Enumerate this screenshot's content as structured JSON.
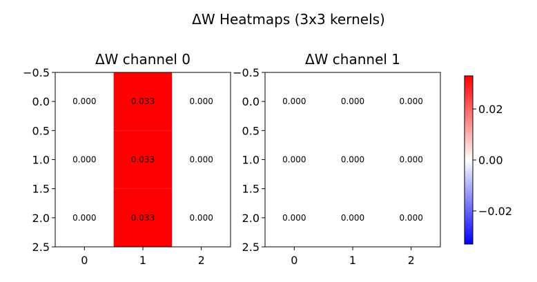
{
  "chart_data": {
    "type": "heatmap",
    "title": "ΔW Heatmaps (3x3 kernels)",
    "colormap": {
      "name": "bwr",
      "low": "#0000ff",
      "mid": "#ffffff",
      "high": "#ff0000",
      "range": [
        -0.033,
        0.033
      ]
    },
    "colorbar_ticks": [
      "0.02",
      "0.00",
      "−0.02"
    ],
    "colorbar_tick_values": [
      0.02,
      0.0,
      -0.02
    ],
    "x_ticks": [
      "0",
      "1",
      "2"
    ],
    "y_ticks": [
      "−0.5",
      "0.0",
      "0.5",
      "1.0",
      "1.5",
      "2.0",
      "2.5"
    ],
    "y_tick_values": [
      -0.5,
      0.0,
      0.5,
      1.0,
      1.5,
      2.0,
      2.5
    ],
    "xlim": [
      -0.5,
      2.5
    ],
    "ylim": [
      2.5,
      -0.5
    ],
    "panels": [
      {
        "title": "ΔW channel 0",
        "values": [
          [
            0.0,
            0.033,
            0.0
          ],
          [
            0.0,
            0.033,
            0.0
          ],
          [
            0.0,
            0.033,
            0.0
          ]
        ],
        "labels": [
          [
            "0.000",
            "0.033",
            "0.000"
          ],
          [
            "0.000",
            "0.033",
            "0.000"
          ],
          [
            "0.000",
            "0.033",
            "0.000"
          ]
        ]
      },
      {
        "title": "ΔW channel 1",
        "values": [
          [
            0.0,
            0.0,
            0.0
          ],
          [
            0.0,
            0.0,
            0.0
          ],
          [
            0.0,
            0.0,
            0.0
          ]
        ],
        "labels": [
          [
            "0.000",
            "0.000",
            "0.000"
          ],
          [
            "0.000",
            "0.000",
            "0.000"
          ],
          [
            "0.000",
            "0.000",
            "0.000"
          ]
        ]
      }
    ]
  }
}
